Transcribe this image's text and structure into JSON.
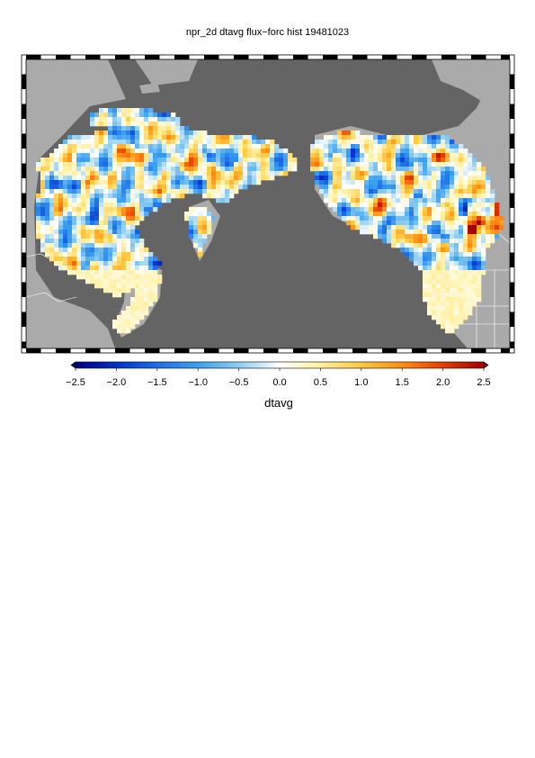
{
  "title": "npr_2d dtavg flux−forc hist 19481023",
  "colorbar": {
    "label": "dtavg",
    "ticks": [
      "−2.5",
      "−2.0",
      "−1.5",
      "−1.0",
      "−0.5",
      "0.0",
      "0.5",
      "1.0",
      "1.5",
      "2.0",
      "2.5"
    ],
    "range": [
      -2.5,
      2.5
    ],
    "extend": "both",
    "colors": [
      "#000080",
      "#0030c8",
      "#1e6ee6",
      "#3ca0f0",
      "#8ccdf0",
      "#ffffff",
      "#fff0a0",
      "#ffc840",
      "#ff8c14",
      "#e63c00",
      "#a00000"
    ]
  },
  "map": {
    "projection": "latitude-longitude",
    "region": "North Pacific rim",
    "ocean_color": "#646464",
    "land_color": "#aaaaaa"
  }
}
